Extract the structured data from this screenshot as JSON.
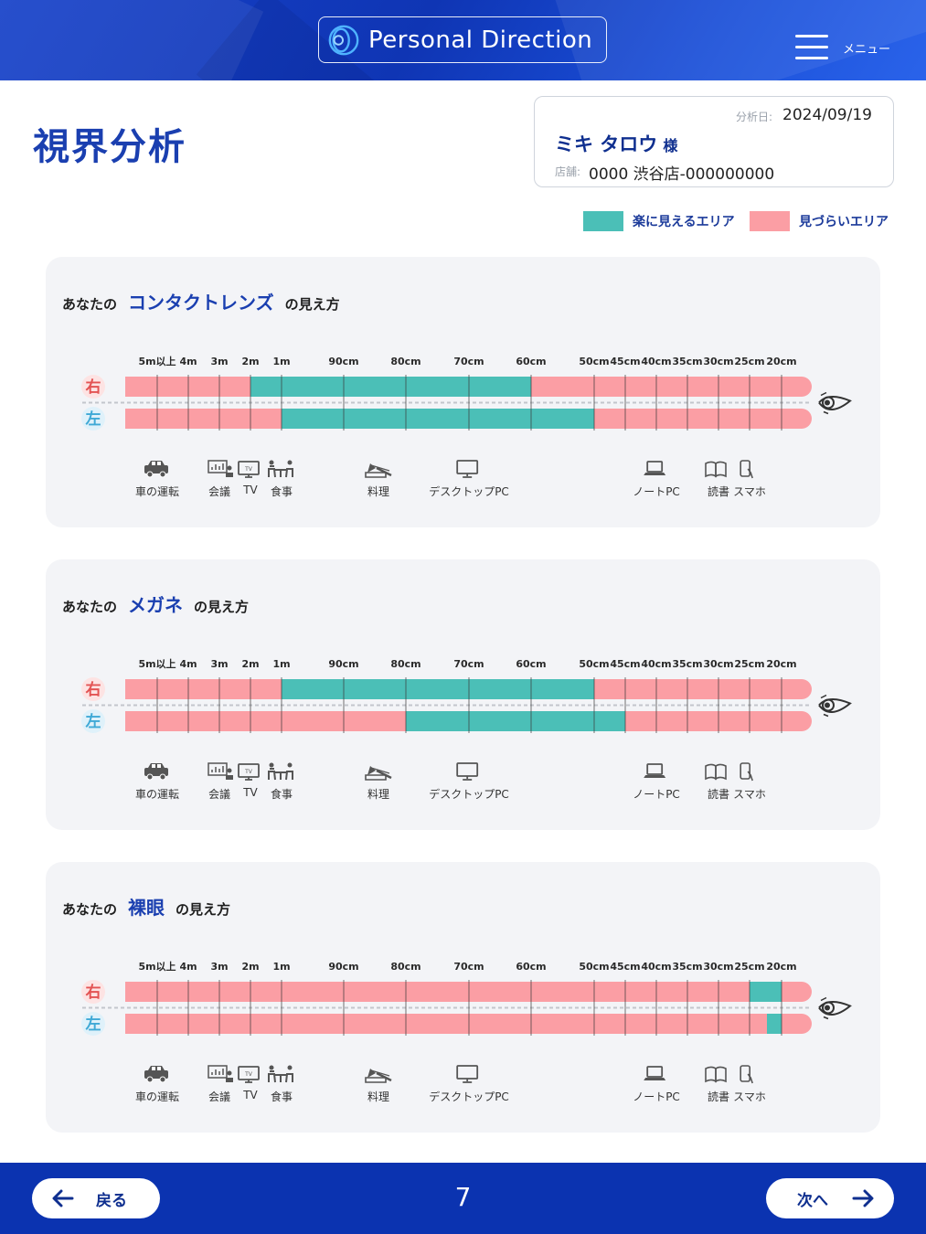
{
  "header": {
    "brand": "Personal Direction",
    "menu_label": "メニュー"
  },
  "page_title": "視界分析",
  "info": {
    "date_label": "分析日:",
    "date": "2024/09/19",
    "name": "ミキ タロウ",
    "honorific": "様",
    "store_label": "店舗:",
    "store": "0000 渋谷店-000000000"
  },
  "legend": {
    "easy_label": "楽に見えるエリア",
    "hard_label": "見づらいエリア",
    "easy_color": "#4bbfb7",
    "hard_color": "#fb9ea4"
  },
  "scale": [
    "5m以上",
    "4m",
    "3m",
    "2m",
    "1m",
    "90cm",
    "80cm",
    "70cm",
    "60cm",
    "50cm",
    "45cm",
    "40cm",
    "35cm",
    "30cm",
    "25cm",
    "20cm"
  ],
  "eye_labels": {
    "right": "右",
    "left": "左"
  },
  "activities": [
    {
      "label": "車の運転",
      "at": "5m以上",
      "icon": "car-icon"
    },
    {
      "label": "会議",
      "at": "3m",
      "icon": "meeting-icon"
    },
    {
      "label": "TV",
      "at": "2m",
      "icon": "tv-icon"
    },
    {
      "label": "食事",
      "at": "1m",
      "icon": "dining-icon"
    },
    {
      "label": "料理",
      "at": "85cm",
      "icon": "cooking-icon"
    },
    {
      "label": "デスクトップPC",
      "at": "70cm",
      "icon": "desktop-pc-icon"
    },
    {
      "label": "ノートPC",
      "at": "40cm",
      "icon": "laptop-icon"
    },
    {
      "label": "読書",
      "at": "30cm",
      "icon": "book-icon"
    },
    {
      "label": "スマホ",
      "at": "25cm",
      "icon": "smartphone-icon"
    }
  ],
  "sections": [
    {
      "prefix": "あなたの",
      "keyword": "コンタクトレンズ",
      "suffix": "の見え方",
      "right": {
        "easy_from": "2m",
        "easy_to": "60cm"
      },
      "left": {
        "easy_from": "1m",
        "easy_to": "50cm"
      }
    },
    {
      "prefix": "あなたの",
      "keyword": "メガネ",
      "suffix": "の見え方",
      "right": {
        "easy_from": "1m",
        "easy_to": "50cm"
      },
      "left": {
        "easy_from": "80cm",
        "easy_to": "45cm"
      }
    },
    {
      "prefix": "あなたの",
      "keyword": "裸眼",
      "suffix": "の見え方",
      "right": {
        "easy_from": "25cm",
        "easy_to": "20cm"
      },
      "left": {
        "easy_from": "22cm",
        "easy_to": "20cm"
      }
    }
  ],
  "footer": {
    "back_label": "戻る",
    "page_number": "7",
    "next_label": "次へ"
  }
}
